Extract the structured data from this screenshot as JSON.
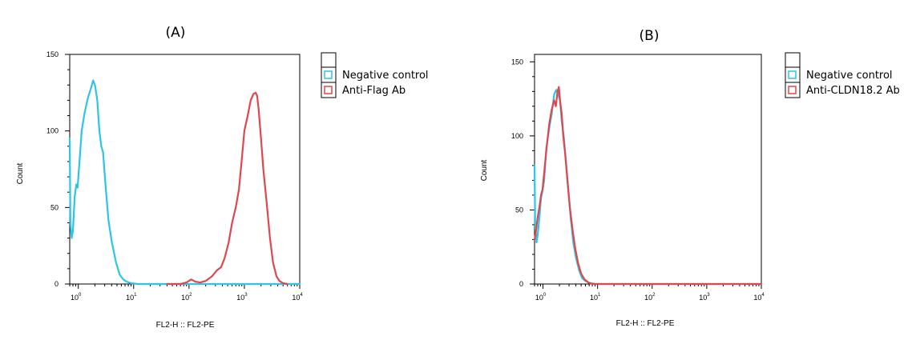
{
  "chart_data": [
    {
      "type": "line",
      "panel_label": "(A)",
      "xlabel": "FL2-H :: FL2-PE",
      "ylabel": "Count",
      "xscale": "log",
      "xlim": [
        0.7,
        10000
      ],
      "ylim": [
        0,
        150
      ],
      "yticks": [
        0,
        50,
        100,
        150
      ],
      "xticks": [
        {
          "value": 1,
          "base": "10",
          "exp": "0"
        },
        {
          "value": 10,
          "base": "10",
          "exp": "1"
        },
        {
          "value": 100,
          "base": "10",
          "exp": "2"
        },
        {
          "value": 1000,
          "base": "10",
          "exp": "3"
        },
        {
          "value": 10000,
          "base": "10",
          "exp": "4"
        }
      ],
      "legend": {
        "placement": "outside-right"
      },
      "series": [
        {
          "name": "Negative control",
          "color": "#2ec4e6",
          "points": [
            [
              0.7,
              95
            ],
            [
              0.72,
              40
            ],
            [
              0.76,
              30
            ],
            [
              0.8,
              35
            ],
            [
              0.86,
              57
            ],
            [
              0.92,
              65
            ],
            [
              0.97,
              63
            ],
            [
              1.05,
              80
            ],
            [
              1.15,
              100
            ],
            [
              1.3,
              112
            ],
            [
              1.5,
              122
            ],
            [
              1.7,
              128
            ],
            [
              1.85,
              133
            ],
            [
              2.0,
              130
            ],
            [
              2.2,
              120
            ],
            [
              2.4,
              100
            ],
            [
              2.6,
              90
            ],
            [
              2.8,
              86
            ],
            [
              3.1,
              65
            ],
            [
              3.5,
              42
            ],
            [
              4.0,
              28
            ],
            [
              4.8,
              14
            ],
            [
              5.6,
              6
            ],
            [
              6.5,
              3
            ],
            [
              7.5,
              1.5
            ],
            [
              9,
              0.5
            ],
            [
              12,
              0
            ],
            [
              30,
              0
            ],
            [
              100,
              0
            ],
            [
              1000,
              0
            ],
            [
              10000,
              0
            ]
          ]
        },
        {
          "name": "Anti-Flag Ab",
          "color": "#e0474c",
          "points": [
            [
              40,
              0
            ],
            [
              70,
              0
            ],
            [
              90,
              1
            ],
            [
              110,
              3
            ],
            [
              130,
              1.5
            ],
            [
              160,
              1
            ],
            [
              200,
              2
            ],
            [
              260,
              5
            ],
            [
              320,
              9
            ],
            [
              380,
              11
            ],
            [
              440,
              17
            ],
            [
              520,
              27
            ],
            [
              600,
              40
            ],
            [
              700,
              50
            ],
            [
              800,
              62
            ],
            [
              900,
              82
            ],
            [
              1000,
              100
            ],
            [
              1150,
              110
            ],
            [
              1300,
              120
            ],
            [
              1450,
              124
            ],
            [
              1600,
              125
            ],
            [
              1700,
              123
            ],
            [
              1800,
              115
            ],
            [
              2000,
              95
            ],
            [
              2200,
              75
            ],
            [
              2500,
              55
            ],
            [
              2900,
              30
            ],
            [
              3300,
              14
            ],
            [
              3800,
              5
            ],
            [
              4300,
              2
            ],
            [
              5000,
              0.5
            ],
            [
              6000,
              0
            ]
          ]
        }
      ]
    },
    {
      "type": "line",
      "panel_label": "(B)",
      "xlabel": "FL2-H :: FL2-PE",
      "ylabel": "Count",
      "xscale": "log",
      "xlim": [
        0.7,
        10000
      ],
      "ylim": [
        0,
        155
      ],
      "yticks": [
        0,
        50,
        100,
        150
      ],
      "xticks": [
        {
          "value": 1,
          "base": "10",
          "exp": "0"
        },
        {
          "value": 10,
          "base": "10",
          "exp": "1"
        },
        {
          "value": 100,
          "base": "10",
          "exp": "2"
        },
        {
          "value": 1000,
          "base": "10",
          "exp": "3"
        },
        {
          "value": 10000,
          "base": "10",
          "exp": "4"
        }
      ],
      "legend": {
        "placement": "outside-right"
      },
      "series": [
        {
          "name": "Negative control",
          "color": "#2ec4e6",
          "points": [
            [
              0.7,
              80
            ],
            [
              0.72,
              40
            ],
            [
              0.76,
              28
            ],
            [
              0.8,
              33
            ],
            [
              0.86,
              45
            ],
            [
              0.92,
              58
            ],
            [
              0.98,
              63
            ],
            [
              1.05,
              70
            ],
            [
              1.15,
              92
            ],
            [
              1.3,
              105
            ],
            [
              1.45,
              115
            ],
            [
              1.6,
              128
            ],
            [
              1.75,
              131
            ],
            [
              1.9,
              128
            ],
            [
              2.05,
              124
            ],
            [
              2.2,
              110
            ],
            [
              2.4,
              100
            ],
            [
              2.6,
              85
            ],
            [
              2.9,
              65
            ],
            [
              3.2,
              45
            ],
            [
              3.6,
              28
            ],
            [
              4.0,
              18
            ],
            [
              4.6,
              9
            ],
            [
              5.2,
              4
            ],
            [
              6.0,
              2
            ],
            [
              7.0,
              0.8
            ],
            [
              9,
              0
            ],
            [
              12,
              0
            ],
            [
              100,
              0
            ],
            [
              1000,
              0
            ],
            [
              10000,
              0
            ]
          ]
        },
        {
          "name": "Anti-CLDN18.2 Ab",
          "color": "#e0474c",
          "points": [
            [
              0.7,
              30
            ],
            [
              0.74,
              35
            ],
            [
              0.8,
              45
            ],
            [
              0.86,
              52
            ],
            [
              0.92,
              60
            ],
            [
              0.98,
              64
            ],
            [
              1.05,
              75
            ],
            [
              1.15,
              90
            ],
            [
              1.3,
              108
            ],
            [
              1.45,
              118
            ],
            [
              1.6,
              124
            ],
            [
              1.72,
              120
            ],
            [
              1.85,
              130
            ],
            [
              1.95,
              133
            ],
            [
              2.05,
              124
            ],
            [
              2.2,
              115
            ],
            [
              2.35,
              100
            ],
            [
              2.55,
              88
            ],
            [
              2.8,
              70
            ],
            [
              3.1,
              52
            ],
            [
              3.5,
              36
            ],
            [
              3.9,
              24
            ],
            [
              4.4,
              14
            ],
            [
              5.0,
              7
            ],
            [
              5.8,
              3
            ],
            [
              6.8,
              1
            ],
            [
              8,
              0
            ],
            [
              12,
              0
            ],
            [
              100,
              0
            ],
            [
              1000,
              0
            ],
            [
              10000,
              0
            ]
          ]
        }
      ]
    }
  ]
}
